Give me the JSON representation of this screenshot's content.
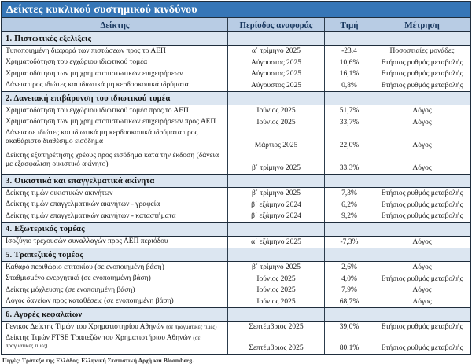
{
  "title": "Δείκτες κυκλικού συστημικού κινδύνου",
  "colors": {
    "title_bg": "#3676b7",
    "header_bg": "#b8cce4",
    "header_text": "#17365d",
    "section_bg": "#dce6f1",
    "border": "#1f2d3c"
  },
  "table": {
    "columns": [
      "Δείκτης",
      "Περίοδος αναφοράς",
      "Τιμή",
      "Μέτρηση"
    ],
    "sections": [
      {
        "header": "1. Πιστωτικές εξελίξεις",
        "rows": [
          {
            "indicator": "Τυποποιημένη διαφορά των πιστώσεων προς το ΑΕΠ",
            "period": "α΄ τρίμηνο 2025",
            "value": "-23,4",
            "measure": "Ποσοστιαίες μονάδες"
          },
          {
            "indicator": "Χρηματοδότηση του εγχώριου ιδιωτικού τομέα",
            "period": "Αύγουστος 2025",
            "value": "10,6%",
            "measure": "Ετήσιος ρυθμός μεταβολής"
          },
          {
            "indicator": "Χρηματοδότηση των μη χρηματοπιστωτικών επιχειρήσεων",
            "period": "Αύγουστος 2025",
            "value": "16,1%",
            "measure": "Ετήσιος ρυθμός μεταβολής"
          },
          {
            "indicator": "Δάνεια προς ιδιώτες και ιδιωτικά μη κερδοσκοπικά ιδρύματα",
            "period": "Αύγουστος 2025",
            "value": "0,8%",
            "measure": "Ετήσιος ρυθμός μεταβολής"
          }
        ]
      },
      {
        "header": "2. Δανειακή επιβάρυνση του ιδιωτικού τομέα",
        "rows": [
          {
            "indicator": "Χρηματοδότηση του εγχώριου ιδιωτικού τομέα προς το ΑΕΠ",
            "period": "Ιούνιος 2025",
            "value": "51,7%",
            "measure": "Λόγος"
          },
          {
            "indicator": "Χρηματοδότηση των μη χρηματοπιστωτικών επιχειρήσεων προς ΑΕΠ",
            "period": "Ιούνιος 2025",
            "value": "33,7%",
            "measure": "Λόγος"
          },
          {
            "indicator": "Δάνεια σε ιδιώτες και ιδιωτικά μη κερδοσκοπικά ιδρύματα προς ακαθάριστο διαθέσιμο εισόδημα",
            "period": "Μάρτιος 2025",
            "value": "22,0%",
            "measure": "Λόγος",
            "lines": 2
          },
          {
            "indicator": "Δείκτης εξυπηρέτησης χρέους προς εισόδημα κατά την έκδοση (δάνεια με εξασφάλιση οικιστικό ακίνητο)",
            "period": "β΄ τρίμηνο 2025",
            "value": "33,3%",
            "measure": "Λόγος",
            "lines": 2
          }
        ]
      },
      {
        "header": "3. Οικιστικά και επαγγελματικά ακίνητα",
        "rows": [
          {
            "indicator": "Δείκτης τιμών οικιστικών ακινήτων",
            "period": "β΄ τρίμηνο 2025",
            "value": "7,3%",
            "measure": "Ετήσιος ρυθμός μεταβολής"
          },
          {
            "indicator": "Δείκτης τιμών επαγγελματικών ακινήτων - γραφεία",
            "period": "β΄ εξάμηνο 2024",
            "value": "6,2%",
            "measure": "Ετήσιος ρυθμός μεταβολής"
          },
          {
            "indicator": "Δείκτης τιμών επαγγελματικών ακινήτων - καταστήματα",
            "period": "β΄ εξάμηνο 2024",
            "value": "9,2%",
            "measure": "Ετήσιος ρυθμός μεταβολής"
          }
        ]
      },
      {
        "header": "4. Εξωτερικός τομέας",
        "rows": [
          {
            "indicator": "Ισοζύγιο τρεχουσών συναλλαγών προς ΑΕΠ περιόδου",
            "period": "α΄ εξάμηνο 2025",
            "value": "-7,3%",
            "measure": "Λόγος"
          }
        ]
      },
      {
        "header": "5. Τραπεζικός τομέας",
        "rows": [
          {
            "indicator": "Καθαρό περιθώριο επιτοκίου (σε ενοποιημένη βάση)",
            "period": "β΄ τρίμηνο 2025",
            "value": "2,6%",
            "measure": "Λόγος"
          },
          {
            "indicator": "Σταθμισμένο ενεργητικό (σε ενοποιημένη βάση)",
            "period": "Ιούνιος 2025",
            "value": "4,0%",
            "measure": "Ετήσιος ρυθμός μεταβολής"
          },
          {
            "indicator": "Δείκτης μόχλευσης (σε ενοποιημένη βάση)",
            "period": "Ιούνιος 2025",
            "value": "7,9%",
            "measure": "Λόγος"
          },
          {
            "indicator": "Λόγος δανείων προς καταθέσεις (σε ενοποιημένη βάση)",
            "period": "Ιούνιος 2025",
            "value": "68,7%",
            "measure": "Λόγος"
          }
        ]
      },
      {
        "header": "6. Αγορές κεφαλαίων",
        "rows": [
          {
            "indicator": "Γενικός Δείκτης Τιμών του Χρηματιστηρίου Αθηνών",
            "note": "(σε πραγματικές τιμές)",
            "period": "Σεπτέμβριος 2025",
            "value": "39,0%",
            "measure": "Ετήσιος ρυθμός μεταβολής"
          },
          {
            "indicator": "Δείκτης Τιμών FTSE Τραπεζών του Χρηματιστήριου Αθηνών",
            "note": "(σε πραγματικές τιμές)",
            "period": "Σεπτέμβριος 2025",
            "value": "80,1%",
            "measure": "Ετήσιος ρυθμός μεταβολής",
            "lines": 2,
            "compact": true
          }
        ]
      }
    ]
  },
  "footer": {
    "sources": "Πηγές: Τράπεζα της Ελλάδος, Ελληνική Στατιστική Αρχή και Bloomberg."
  }
}
